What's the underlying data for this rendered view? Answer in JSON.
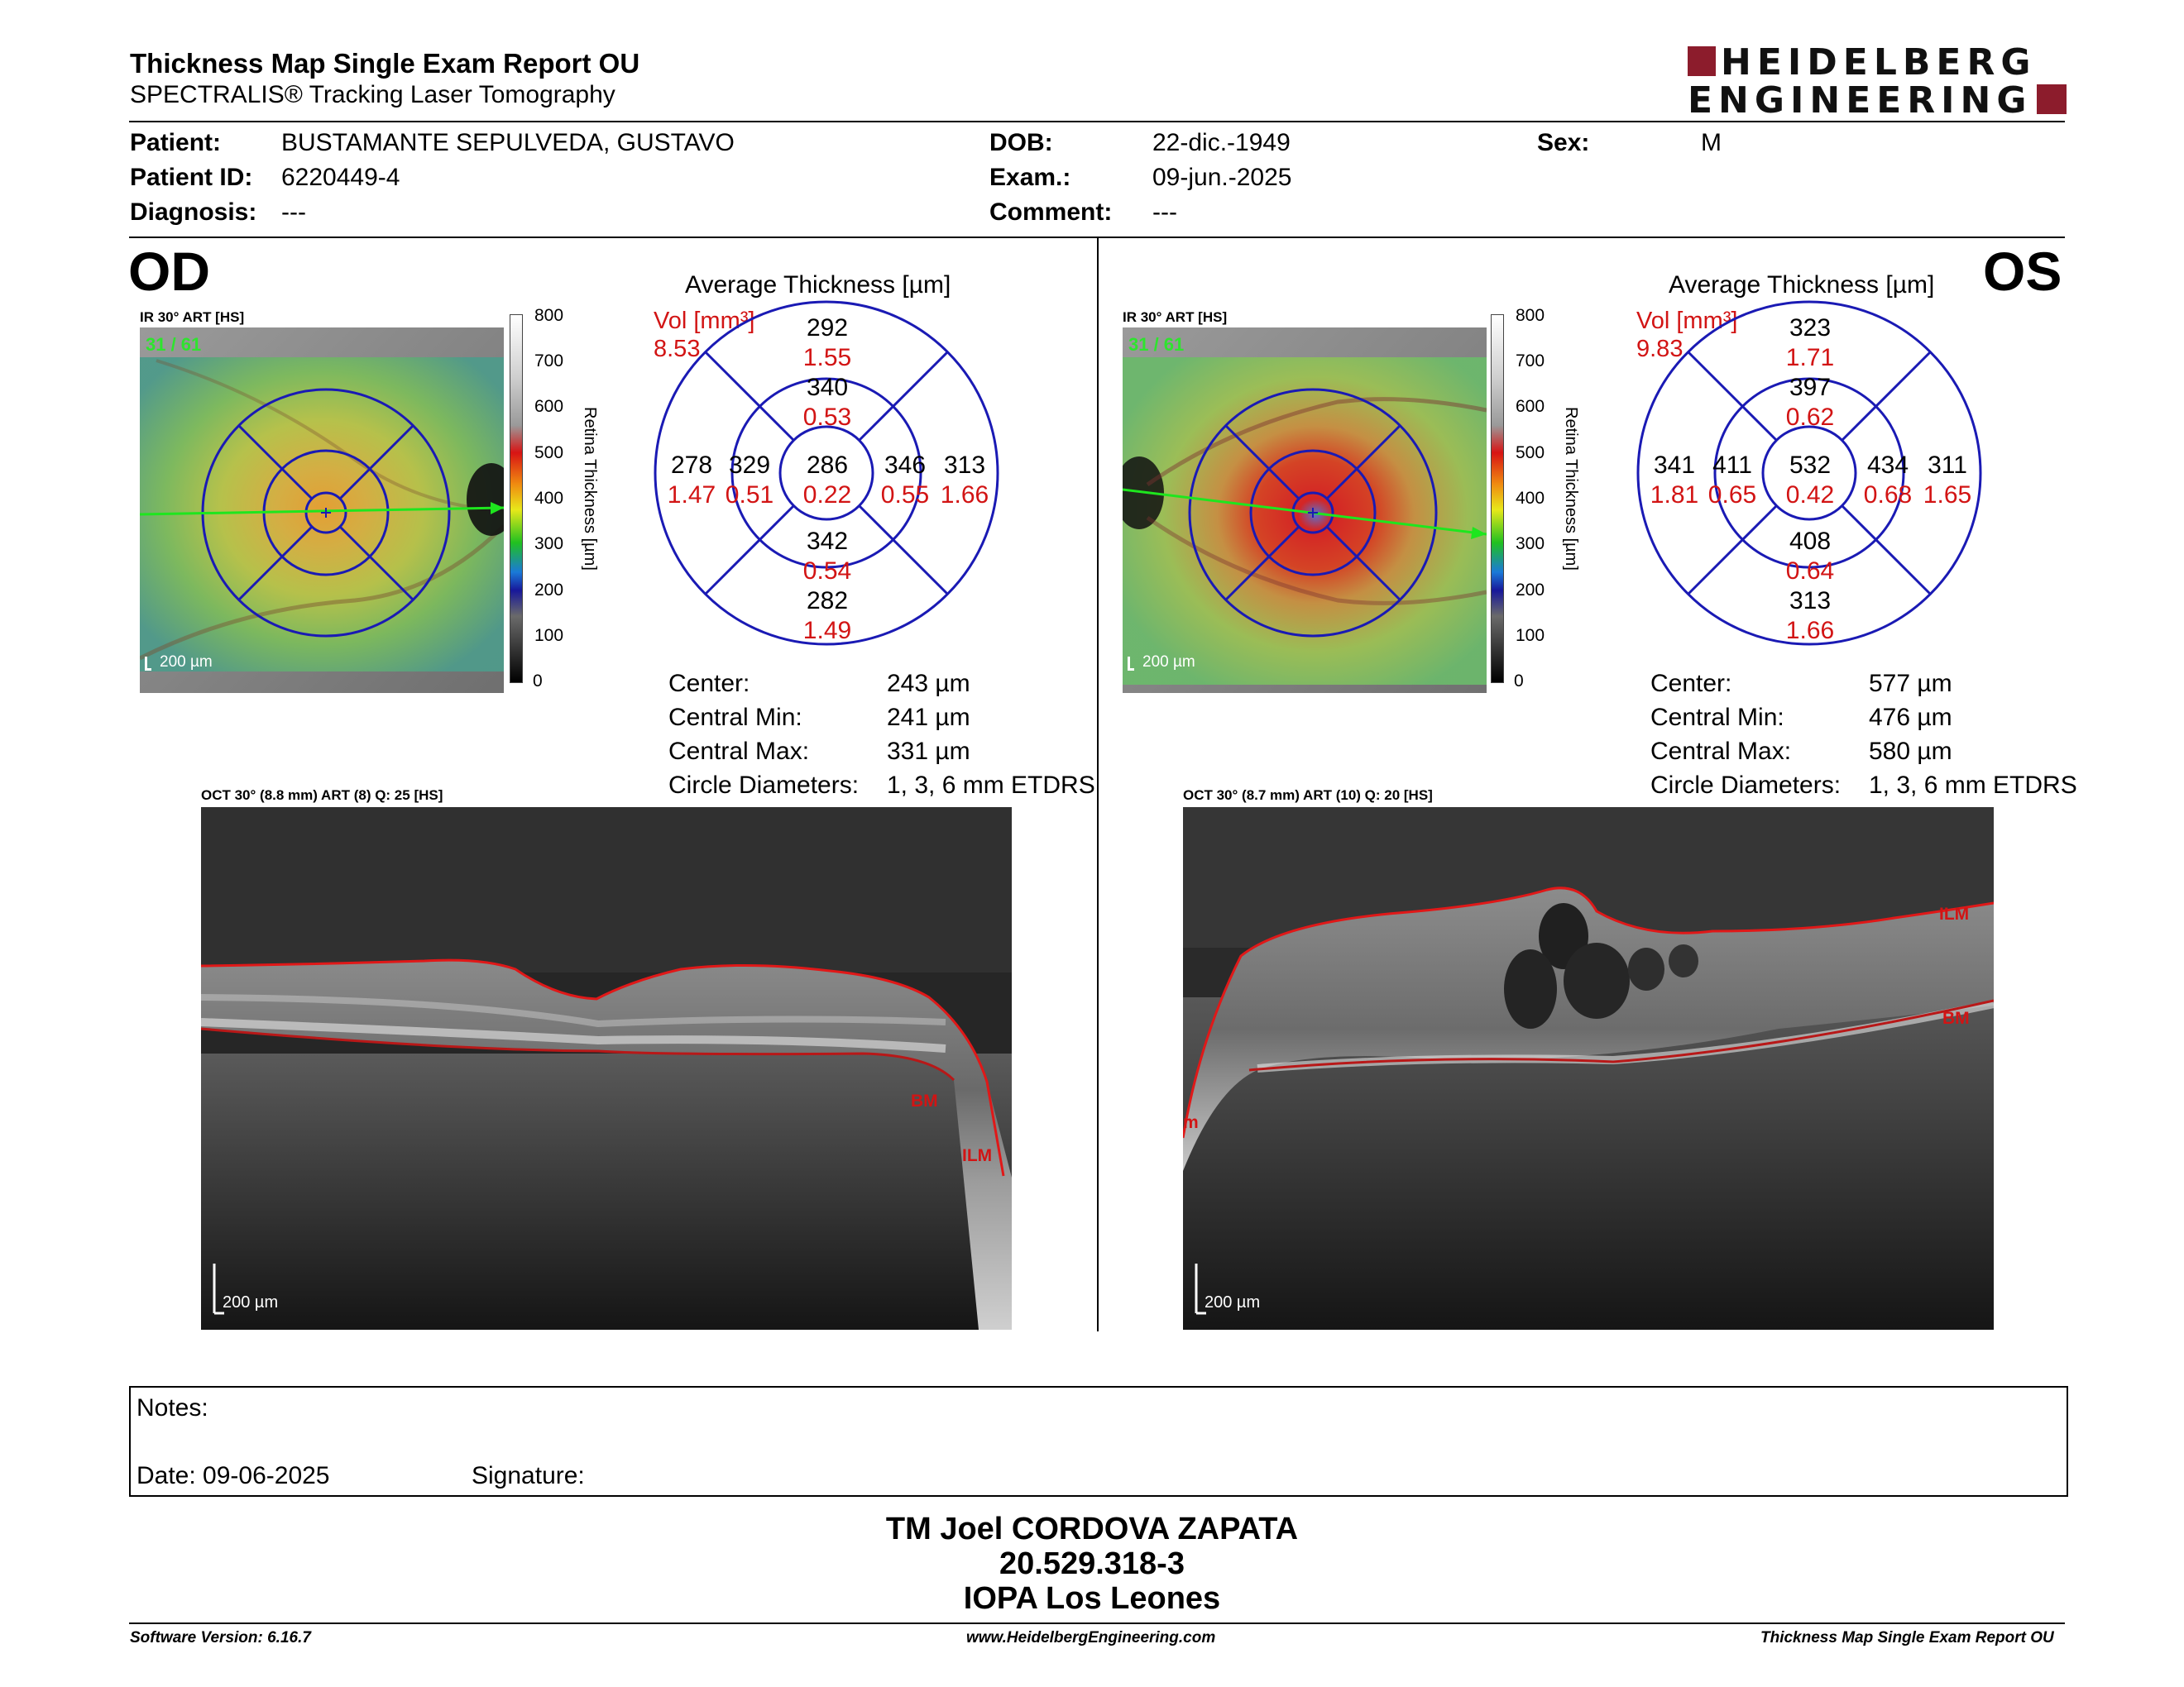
{
  "header": {
    "title": "Thickness Map Single Exam Report OU",
    "subtitle": "SPECTRALIS® Tracking Laser Tomography",
    "logo_line1": "HEIDELBERG",
    "logo_line2": "ENGINEERING"
  },
  "patient": {
    "patient_label": "Patient:",
    "patient_value": "BUSTAMANTE SEPULVEDA, GUSTAVO",
    "id_label": "Patient ID:",
    "id_value": "6220449-4",
    "diagnosis_label": "Diagnosis:",
    "diagnosis_value": "---",
    "dob_label": "DOB:",
    "dob_value": "22-dic.-1949",
    "exam_label": "Exam.:",
    "exam_value": "09-jun.-2025",
    "comment_label": "Comment:",
    "comment_value": "---",
    "sex_label": "Sex:",
    "sex_value": "M"
  },
  "colorbar": {
    "ticks": [
      "800",
      "700",
      "600",
      "500",
      "400",
      "300",
      "200",
      "100",
      "0"
    ],
    "title": "Retina Thickness [µm]"
  },
  "od": {
    "label": "OD",
    "ir_caption": "IR 30° ART [HS]",
    "frame": "31 / 61",
    "scale": "200 µm",
    "avg_title": "Average Thickness [µm]",
    "vol_label": "Vol [mm³]",
    "vol_total": "8.53",
    "sectors": {
      "outer_sup": {
        "thk": "292",
        "vol": "1.55"
      },
      "inner_sup": {
        "thk": "340",
        "vol": "0.53"
      },
      "outer_temp": {
        "thk": "278",
        "vol": "1.47"
      },
      "inner_temp": {
        "thk": "329",
        "vol": "0.51"
      },
      "center": {
        "thk": "286",
        "vol": "0.22"
      },
      "inner_nasal": {
        "thk": "346",
        "vol": "0.55"
      },
      "outer_nasal": {
        "thk": "313",
        "vol": "1.66"
      },
      "inner_inf": {
        "thk": "342",
        "vol": "0.54"
      },
      "outer_inf": {
        "thk": "282",
        "vol": "1.49"
      }
    },
    "stats": {
      "center_label": "Center:",
      "center_value": "243 µm",
      "min_label": "Central Min:",
      "min_value": "241 µm",
      "max_label": "Central Max:",
      "max_value": "331 µm",
      "diam_label": "Circle Diameters:",
      "diam_value": "1, 3, 6 mm ETDRS"
    },
    "oct_caption": "OCT 30° (8.8 mm) ART (8) Q: 25 [HS]",
    "oct_scale": "200 µm",
    "ilm_label": "ILM",
    "bm_label": "BM"
  },
  "os": {
    "label": "OS",
    "ir_caption": "IR 30° ART [HS]",
    "frame": "31 / 61",
    "scale": "200 µm",
    "avg_title": "Average Thickness [µm]",
    "vol_label": "Vol [mm³]",
    "vol_total": "9.83",
    "sectors": {
      "outer_sup": {
        "thk": "323",
        "vol": "1.71"
      },
      "inner_sup": {
        "thk": "397",
        "vol": "0.62"
      },
      "outer_temp": {
        "thk": "341",
        "vol": "1.81"
      },
      "inner_temp": {
        "thk": "411",
        "vol": "0.65"
      },
      "center": {
        "thk": "532",
        "vol": "0.42"
      },
      "inner_nasal": {
        "thk": "434",
        "vol": "0.68"
      },
      "outer_nasal": {
        "thk": "311",
        "vol": "1.65"
      },
      "inner_inf": {
        "thk": "408",
        "vol": "0.64"
      },
      "outer_inf": {
        "thk": "313",
        "vol": "1.66"
      }
    },
    "stats": {
      "center_label": "Center:",
      "center_value": "577 µm",
      "min_label": "Central Min:",
      "min_value": "476 µm",
      "max_label": "Central Max:",
      "max_value": "580 µm",
      "diam_label": "Circle Diameters:",
      "diam_value": "1, 3, 6 mm ETDRS"
    },
    "oct_caption": "OCT 30° (8.7 mm) ART (10) Q: 20 [HS]",
    "oct_scale": "200 µm",
    "ilm_label": "ILM",
    "bm_label": "BM",
    "edge_label": "m"
  },
  "notes": {
    "notes_label": "Notes:",
    "date_label": "Date: 09-06-2025",
    "signature_label": "Signature:"
  },
  "signature": {
    "name": "TM Joel CORDOVA ZAPATA",
    "id": "20.529.318-3",
    "clinic": "IOPA Los Leones"
  },
  "footer": {
    "software": "Software Version: 6.16.7",
    "website": "www.HeidelbergEngineering.com",
    "report": "Thickness Map Single Exam Report OU"
  },
  "colors": {
    "volume_red": "#d21414",
    "grid_blue": "#1a1ab4",
    "logo_red": "#8c1c2c",
    "scan_green": "#1ee61e"
  }
}
